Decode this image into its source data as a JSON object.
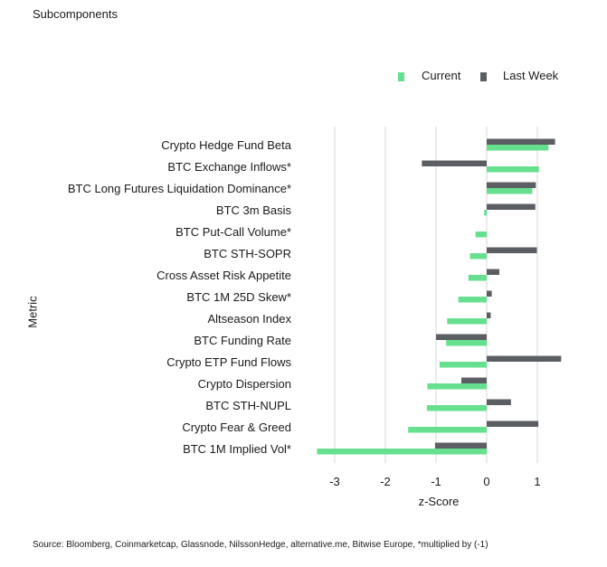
{
  "header": {
    "title": "Subcomponents"
  },
  "legend": {
    "current_label": "Current",
    "last_week_label": "Last Week"
  },
  "colors": {
    "current": "#66e08f",
    "last_week": "#5b5f63",
    "grid": "#d9d9d9"
  },
  "source": "Source: Bloomberg, Coinmarketcap, Glassnode, NilssonHedge, alternative.me, Bitwise Europe, *multiplied by (-1)",
  "chart_data": {
    "type": "bar",
    "orientation": "horizontal",
    "title": "Subcomponents",
    "xlabel": "z-Score",
    "ylabel": "Metric",
    "xlim": [
      -3.35,
      1.2
    ],
    "xticks": [
      -3,
      -2,
      -1,
      0,
      1
    ],
    "xtick_labels": [
      "-3",
      "-2",
      "-1",
      "0",
      "1"
    ],
    "grid": true,
    "legend_position": "top-right",
    "categories": [
      "Crypto Hedge Fund Beta",
      "BTC Exchange Inflows*",
      "BTC Long Futures Liquidation Dominance*",
      "BTC 3m Basis",
      "BTC Put-Call Volume*",
      "BTC STH-SOPR",
      "Cross Asset Risk Appetite",
      "BTC 1M 25D Skew*",
      "Altseason Index",
      "BTC Funding Rate",
      "Crypto ETP Fund Flows",
      "Crypto Dispersion",
      "BTC STH-NUPL",
      "Crypto Fear & Greed",
      "BTC 1M Implied Vol*"
    ],
    "series": [
      {
        "name": "Current",
        "values": [
          1.22,
          1.03,
          0.9,
          -0.05,
          -0.22,
          -0.33,
          -0.36,
          -0.56,
          -0.78,
          -0.8,
          -0.93,
          -1.17,
          -1.18,
          -1.55,
          -3.35
        ]
      },
      {
        "name": "Last Week",
        "values": [
          1.35,
          -1.28,
          0.97,
          0.96,
          0.0,
          0.99,
          0.25,
          0.1,
          0.08,
          -1.0,
          1.47,
          -0.5,
          0.48,
          1.02,
          -1.02
        ]
      }
    ]
  }
}
